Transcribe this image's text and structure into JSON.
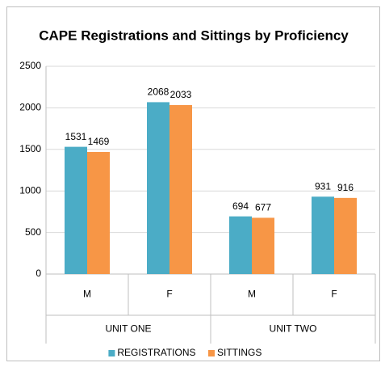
{
  "chart_data": {
    "type": "bar",
    "title": "CAPE Registrations and Sittings by Proficiency",
    "categories": [
      "M",
      "F",
      "M",
      "F"
    ],
    "groups": [
      "UNIT ONE",
      "UNIT TWO"
    ],
    "series": [
      {
        "name": "REGISTRATIONS",
        "color": "#4bacc6",
        "values": [
          1531,
          2068,
          694,
          931
        ]
      },
      {
        "name": "SITTINGS",
        "color": "#f79646",
        "values": [
          1469,
          2033,
          677,
          916
        ]
      }
    ],
    "ylim": [
      0,
      2500
    ],
    "yticks": [
      0,
      500,
      1000,
      1500,
      2000,
      2500
    ],
    "grid": true,
    "legend": "bottom"
  }
}
